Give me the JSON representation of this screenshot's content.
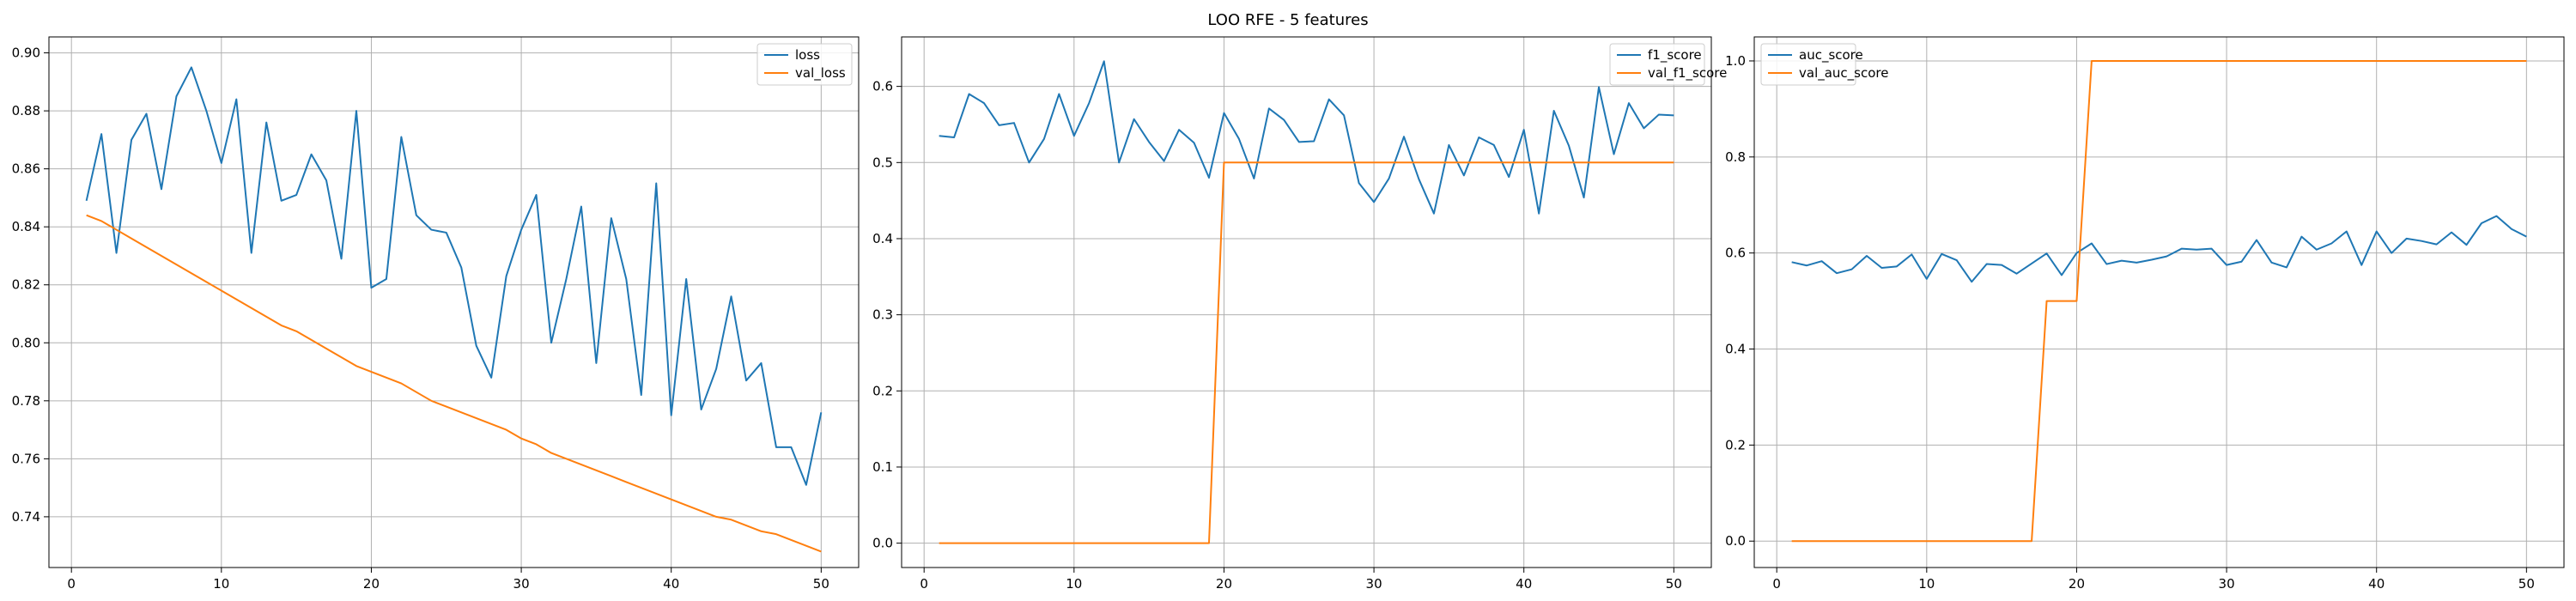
{
  "figure": {
    "title": "LOO RFE - 5 features",
    "colors": {
      "series1": "#1f77b4",
      "series2": "#ff7f0e",
      "grid": "#b0b0b0",
      "axes": "#000000"
    }
  },
  "chart_data": [
    {
      "type": "line",
      "grid": true,
      "legend_position": "top-right",
      "xlim": [
        -1.5,
        52.5
      ],
      "ylim": [
        0.7225,
        0.9055
      ],
      "xticks": [
        0,
        10,
        20,
        30,
        40,
        50
      ],
      "yticks": [
        0.74,
        0.76,
        0.78,
        0.8,
        0.82,
        0.84,
        0.86,
        0.88,
        0.9
      ],
      "yticklabels": [
        "0.74",
        "0.76",
        "0.78",
        "0.80",
        "0.82",
        "0.84",
        "0.86",
        "0.88",
        "0.90"
      ],
      "x": [
        1,
        2,
        3,
        4,
        5,
        6,
        7,
        8,
        9,
        10,
        11,
        12,
        13,
        14,
        15,
        16,
        17,
        18,
        19,
        20,
        21,
        22,
        23,
        24,
        25,
        26,
        27,
        28,
        29,
        30,
        31,
        32,
        33,
        34,
        35,
        36,
        37,
        38,
        39,
        40,
        41,
        42,
        43,
        44,
        45,
        46,
        47,
        48,
        49,
        50
      ],
      "series": [
        {
          "name": "loss",
          "values": [
            0.849,
            0.872,
            0.831,
            0.87,
            0.879,
            0.853,
            0.885,
            0.895,
            0.88,
            0.862,
            0.884,
            0.831,
            0.876,
            0.849,
            0.851,
            0.865,
            0.856,
            0.829,
            0.88,
            0.819,
            0.822,
            0.871,
            0.844,
            0.839,
            0.838,
            0.826,
            0.799,
            0.788,
            0.823,
            0.839,
            0.851,
            0.8,
            0.822,
            0.847,
            0.793,
            0.843,
            0.822,
            0.782,
            0.855,
            0.775,
            0.822,
            0.777,
            0.791,
            0.816,
            0.787,
            0.793,
            0.764,
            0.764,
            0.751,
            0.776
          ]
        },
        {
          "name": "val_loss",
          "values": [
            0.844,
            0.842,
            0.839,
            0.836,
            0.833,
            0.83,
            0.827,
            0.824,
            0.821,
            0.818,
            0.815,
            0.812,
            0.809,
            0.806,
            0.804,
            0.801,
            0.798,
            0.795,
            0.792,
            0.79,
            0.788,
            0.786,
            0.783,
            0.78,
            0.778,
            0.776,
            0.774,
            0.772,
            0.77,
            0.767,
            0.765,
            0.762,
            0.76,
            0.758,
            0.756,
            0.754,
            0.752,
            0.75,
            0.748,
            0.746,
            0.744,
            0.742,
            0.74,
            0.739,
            0.737,
            0.735,
            0.734,
            0.732,
            0.73,
            0.728
          ]
        }
      ]
    },
    {
      "type": "line",
      "grid": true,
      "legend_position": "top-right",
      "xlim": [
        -1.5,
        52.5
      ],
      "ylim": [
        -0.032,
        0.665
      ],
      "xticks": [
        0,
        10,
        20,
        30,
        40,
        50
      ],
      "yticks": [
        0.0,
        0.1,
        0.2,
        0.3,
        0.4,
        0.5,
        0.6
      ],
      "yticklabels": [
        "0.0",
        "0.1",
        "0.2",
        "0.3",
        "0.4",
        "0.5",
        "0.6"
      ],
      "x": [
        1,
        2,
        3,
        4,
        5,
        6,
        7,
        8,
        9,
        10,
        11,
        12,
        13,
        14,
        15,
        16,
        17,
        18,
        19,
        20,
        21,
        22,
        23,
        24,
        25,
        26,
        27,
        28,
        29,
        30,
        31,
        32,
        33,
        34,
        35,
        36,
        37,
        38,
        39,
        40,
        41,
        42,
        43,
        44,
        45,
        46,
        47,
        48,
        49,
        50
      ],
      "series": [
        {
          "name": "f1_score",
          "values": [
            0.535,
            0.533,
            0.59,
            0.578,
            0.549,
            0.552,
            0.5,
            0.531,
            0.59,
            0.535,
            0.578,
            0.633,
            0.5,
            0.557,
            0.527,
            0.502,
            0.543,
            0.526,
            0.48,
            0.565,
            0.531,
            0.479,
            0.571,
            0.556,
            0.527,
            0.528,
            0.583,
            0.562,
            0.473,
            0.448,
            0.479,
            0.534,
            0.478,
            0.433,
            0.523,
            0.483,
            0.533,
            0.523,
            0.481,
            0.543,
            0.433,
            0.568,
            0.522,
            0.454,
            0.599,
            0.511,
            0.578,
            0.545,
            0.563,
            0.562
          ]
        },
        {
          "name": "val_f1_score",
          "values": [
            0,
            0,
            0,
            0,
            0,
            0,
            0,
            0,
            0,
            0,
            0,
            0,
            0,
            0,
            0,
            0,
            0,
            0,
            0,
            0.5,
            0.5,
            0.5,
            0.5,
            0.5,
            0.5,
            0.5,
            0.5,
            0.5,
            0.5,
            0.5,
            0.5,
            0.5,
            0.5,
            0.5,
            0.5,
            0.5,
            0.5,
            0.5,
            0.5,
            0.5,
            0.5,
            0.5,
            0.5,
            0.5,
            0.5,
            0.5,
            0.5,
            0.5,
            0.5,
            0.5
          ]
        }
      ]
    },
    {
      "type": "line",
      "grid": true,
      "legend_position": "top-left",
      "xlim": [
        -1.5,
        52.5
      ],
      "ylim": [
        -0.055,
        1.05
      ],
      "xticks": [
        0,
        10,
        20,
        30,
        40,
        50
      ],
      "yticks": [
        0.0,
        0.2,
        0.4,
        0.6,
        0.8,
        1.0
      ],
      "yticklabels": [
        "0.0",
        "0.2",
        "0.4",
        "0.6",
        "0.8",
        "1.0"
      ],
      "x": [
        1,
        2,
        3,
        4,
        5,
        6,
        7,
        8,
        9,
        10,
        11,
        12,
        13,
        14,
        15,
        16,
        17,
        18,
        19,
        20,
        21,
        22,
        23,
        24,
        25,
        26,
        27,
        28,
        29,
        30,
        31,
        32,
        33,
        34,
        35,
        36,
        37,
        38,
        39,
        40,
        41,
        42,
        43,
        44,
        45,
        46,
        47,
        48,
        49,
        50
      ],
      "series": [
        {
          "name": "auc_score",
          "values": [
            0.581,
            0.574,
            0.583,
            0.558,
            0.566,
            0.594,
            0.569,
            0.572,
            0.597,
            0.546,
            0.598,
            0.585,
            0.54,
            0.577,
            0.575,
            0.557,
            0.578,
            0.599,
            0.554,
            0.6,
            0.62,
            0.577,
            0.584,
            0.58,
            0.586,
            0.593,
            0.609,
            0.607,
            0.609,
            0.575,
            0.582,
            0.627,
            0.58,
            0.57,
            0.634,
            0.607,
            0.62,
            0.645,
            0.575,
            0.645,
            0.6,
            0.63,
            0.625,
            0.618,
            0.643,
            0.617,
            0.662,
            0.677,
            0.65,
            0.634
          ]
        },
        {
          "name": "val_auc_score",
          "values": [
            0,
            0,
            0,
            0,
            0,
            0,
            0,
            0,
            0,
            0,
            0,
            0,
            0,
            0,
            0,
            0,
            0,
            0.5,
            0.5,
            0.5,
            1,
            1,
            1,
            1,
            1,
            1,
            1,
            1,
            1,
            1,
            1,
            1,
            1,
            1,
            1,
            1,
            1,
            1,
            1,
            1,
            1,
            1,
            1,
            1,
            1,
            1,
            1,
            1,
            1,
            1
          ]
        }
      ]
    }
  ]
}
